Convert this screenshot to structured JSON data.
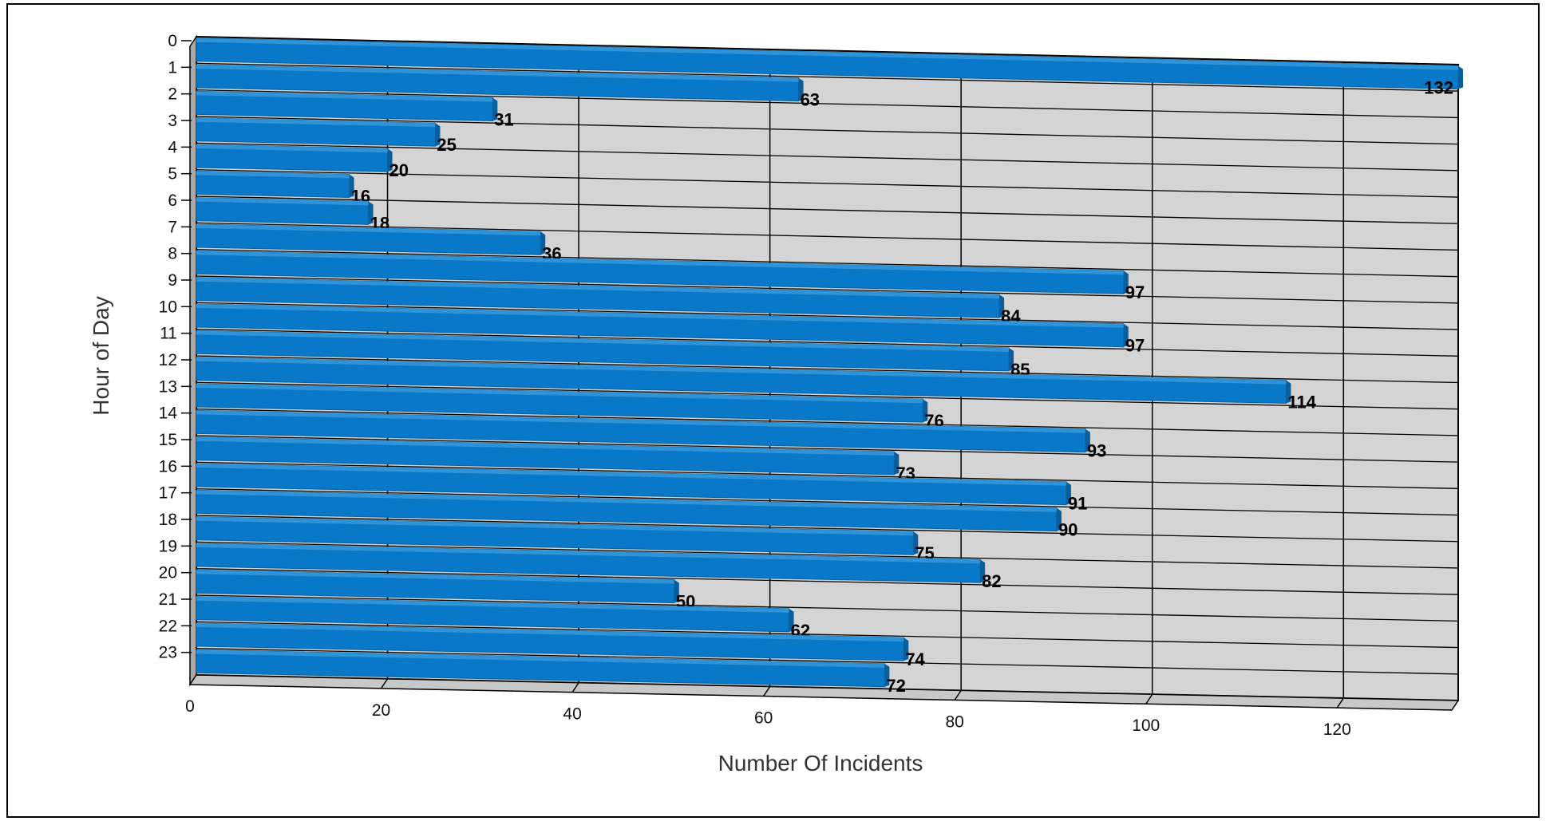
{
  "chart_data": {
    "type": "bar",
    "orientation": "horizontal",
    "style": "3d",
    "categories": [
      "0",
      "1",
      "2",
      "3",
      "4",
      "5",
      "6",
      "7",
      "8",
      "9",
      "10",
      "11",
      "12",
      "13",
      "14",
      "15",
      "16",
      "17",
      "18",
      "19",
      "20",
      "21",
      "22",
      "23"
    ],
    "values": [
      132,
      63,
      31,
      25,
      20,
      16,
      18,
      36,
      97,
      84,
      97,
      85,
      114,
      76,
      93,
      73,
      91,
      90,
      75,
      82,
      50,
      62,
      74,
      72
    ],
    "xlabel": "Number Of Incidents",
    "ylabel": "Hour of Day",
    "xlim": [
      0,
      132
    ],
    "xticks": [
      0,
      20,
      40,
      60,
      80,
      100,
      120
    ],
    "grid": true,
    "legend": "none",
    "colors": {
      "bar_front": "#0A78C8",
      "bar_top": "#2F93DA",
      "bar_end": "#0A5E9C",
      "wall": "#D4D4D4",
      "floor": "#C8C8C8",
      "gridline": "#000000"
    }
  }
}
